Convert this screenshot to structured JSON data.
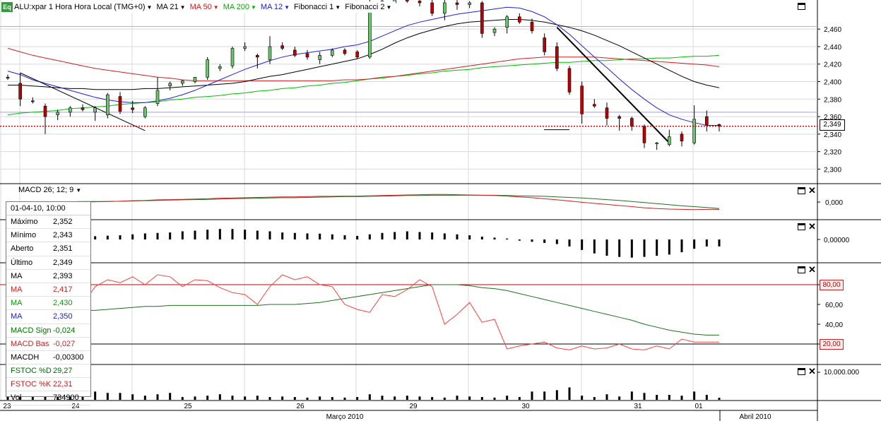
{
  "toolbar": {
    "logo": "Eq",
    "symbol": "ALU:xpar 1 Hora Hora Local (TMG+0)",
    "items": [
      {
        "label": "MA 21",
        "color": "#000000"
      },
      {
        "label": "MA 50",
        "color": "#d02020"
      },
      {
        "label": "MA 200",
        "color": "#00b000"
      },
      {
        "label": "MA 12",
        "color": "#2020d0"
      },
      {
        "label": "Fibonacci 1",
        "color": "#000000"
      },
      {
        "label": "Fibonacci 2",
        "color": "#000000"
      }
    ]
  },
  "macd_label": "MACD 26; 12; 9",
  "info_panel": {
    "header": "01-04-10, 10:00",
    "rows": [
      {
        "k": "Máximo",
        "v": "2,352",
        "color": "#000000"
      },
      {
        "k": "Mínimo",
        "v": "2,343",
        "color": "#000000"
      },
      {
        "k": "Aberto",
        "v": "2,351",
        "color": "#000000"
      },
      {
        "k": "Último",
        "v": "2,349",
        "color": "#000000"
      },
      {
        "k": "MA",
        "v": "2,393",
        "color": "#000000"
      },
      {
        "k": "MA",
        "v": "2,417",
        "color": "#d02020"
      },
      {
        "k": "MA",
        "v": "2,430",
        "color": "#00a000"
      },
      {
        "k": "MA",
        "v": "2,350",
        "color": "#2020d0"
      },
      {
        "k": "MACD Sign",
        "v": "-0,024",
        "color": "#007000"
      },
      {
        "k": "MACD Bas",
        "v": "-0,027",
        "color": "#d02020"
      },
      {
        "k": "MACDH",
        "v": "-0,00300",
        "color": "#000000"
      },
      {
        "k": "FSTOC %D",
        "v": "29,27",
        "color": "#007000"
      },
      {
        "k": "FSTOC %K",
        "v": "22,31",
        "color": "#d02020"
      },
      {
        "k": "Vol",
        "v": "734900",
        "color": "#000000"
      }
    ]
  },
  "colors": {
    "up_candle": "#6cc46c",
    "down_candle": "#c00000",
    "ma21": "#000000",
    "ma50": "#d02020",
    "ma200": "#00c000",
    "ma12": "#2020e0",
    "grid": "#d8d8e0",
    "last_price": "#c00000",
    "fib_line": "#ff80ff"
  },
  "chart_data": [
    {
      "panel": "price",
      "type": "candlestick",
      "y_ticks": [
        "2,460",
        "2,440",
        "2,420",
        "2,400",
        "2,380",
        "2,360",
        "2,340",
        "2,320",
        "2,300"
      ],
      "ylim": [
        2.285,
        2.49
      ],
      "last_price_label": "2,349",
      "last_price": 2.349,
      "fib_levels": [
        2.463,
        2.365
      ],
      "x_day_labels": [
        "23",
        "24",
        "25",
        "26",
        "29",
        "30",
        "31",
        "01"
      ],
      "month_labels": [
        "Março 2010",
        "Abril 2010"
      ],
      "candles": [
        {
          "o": 2.405,
          "h": 2.408,
          "l": 2.402,
          "c": 2.404
        },
        {
          "o": 2.398,
          "h": 2.41,
          "l": 2.372,
          "c": 2.38
        },
        {
          "o": 2.378,
          "h": 2.382,
          "l": 2.375,
          "c": 2.377
        },
        {
          "o": 2.372,
          "h": 2.375,
          "l": 2.34,
          "c": 2.36
        },
        {
          "o": 2.362,
          "h": 2.368,
          "l": 2.356,
          "c": 2.365
        },
        {
          "o": 2.365,
          "h": 2.372,
          "l": 2.36,
          "c": 2.37
        },
        {
          "o": 2.37,
          "h": 2.374,
          "l": 2.366,
          "c": 2.368
        },
        {
          "o": 2.365,
          "h": 2.372,
          "l": 2.355,
          "c": 2.37
        },
        {
          "o": 2.362,
          "h": 2.387,
          "l": 2.358,
          "c": 2.385
        },
        {
          "o": 2.383,
          "h": 2.388,
          "l": 2.363,
          "c": 2.366
        },
        {
          "o": 2.37,
          "h": 2.378,
          "l": 2.364,
          "c": 2.368
        },
        {
          "o": 2.36,
          "h": 2.372,
          "l": 2.358,
          "c": 2.37
        },
        {
          "o": 2.375,
          "h": 2.405,
          "l": 2.372,
          "c": 2.39
        },
        {
          "o": 2.395,
          "h": 2.4,
          "l": 2.39,
          "c": 2.398
        },
        {
          "o": 2.398,
          "h": 2.402,
          "l": 2.395,
          "c": 2.401
        },
        {
          "o": 2.4,
          "h": 2.405,
          "l": 2.398,
          "c": 2.405
        },
        {
          "o": 2.405,
          "h": 2.428,
          "l": 2.402,
          "c": 2.425
        },
        {
          "o": 2.415,
          "h": 2.42,
          "l": 2.412,
          "c": 2.417
        },
        {
          "o": 2.418,
          "h": 2.44,
          "l": 2.415,
          "c": 2.438
        },
        {
          "o": 2.438,
          "h": 2.445,
          "l": 2.435,
          "c": 2.44
        },
        {
          "o": 2.43,
          "h": 2.432,
          "l": 2.415,
          "c": 2.428
        },
        {
          "o": 2.425,
          "h": 2.452,
          "l": 2.42,
          "c": 2.44
        },
        {
          "o": 2.441,
          "h": 2.445,
          "l": 2.436,
          "c": 2.438
        },
        {
          "o": 2.436,
          "h": 2.44,
          "l": 2.428,
          "c": 2.43
        },
        {
          "o": 2.432,
          "h": 2.436,
          "l": 2.425,
          "c": 2.428
        },
        {
          "o": 2.425,
          "h": 2.434,
          "l": 2.42,
          "c": 2.43
        },
        {
          "o": 2.43,
          "h": 2.438,
          "l": 2.428,
          "c": 2.436
        },
        {
          "o": 2.436,
          "h": 2.438,
          "l": 2.43,
          "c": 2.432
        },
        {
          "o": 2.434,
          "h": 2.436,
          "l": 2.426,
          "c": 2.428
        },
        {
          "o": 2.428,
          "h": 2.495,
          "l": 2.426,
          "c": 2.49
        },
        {
          "o": 2.488,
          "h": 2.495,
          "l": 2.482,
          "c": 2.492
        },
        {
          "o": 2.49,
          "h": 2.495,
          "l": 2.486,
          "c": 2.494
        },
        {
          "o": 2.494,
          "h": 2.496,
          "l": 2.49,
          "c": 2.492
        },
        {
          "o": 2.492,
          "h": 2.495,
          "l": 2.486,
          "c": 2.49
        },
        {
          "o": 2.49,
          "h": 2.496,
          "l": 2.475,
          "c": 2.478
        },
        {
          "o": 2.478,
          "h": 2.495,
          "l": 2.47,
          "c": 2.49
        },
        {
          "o": 2.49,
          "h": 2.495,
          "l": 2.482,
          "c": 2.488
        },
        {
          "o": 2.488,
          "h": 2.492,
          "l": 2.484,
          "c": 2.49
        },
        {
          "o": 2.49,
          "h": 2.492,
          "l": 2.45,
          "c": 2.455
        },
        {
          "o": 2.456,
          "h": 2.462,
          "l": 2.452,
          "c": 2.46
        },
        {
          "o": 2.462,
          "h": 2.476,
          "l": 2.455,
          "c": 2.474
        },
        {
          "o": 2.474,
          "h": 2.478,
          "l": 2.466,
          "c": 2.468
        },
        {
          "o": 2.468,
          "h": 2.472,
          "l": 2.455,
          "c": 2.458
        },
        {
          "o": 2.45,
          "h": 2.455,
          "l": 2.43,
          "c": 2.434
        },
        {
          "o": 2.44,
          "h": 2.445,
          "l": 2.412,
          "c": 2.415
        },
        {
          "o": 2.415,
          "h": 2.418,
          "l": 2.385,
          "c": 2.388
        },
        {
          "o": 2.395,
          "h": 2.4,
          "l": 2.352,
          "c": 2.363
        },
        {
          "o": 2.374,
          "h": 2.38,
          "l": 2.37,
          "c": 2.372
        },
        {
          "o": 2.37,
          "h": 2.376,
          "l": 2.35,
          "c": 2.358
        },
        {
          "o": 2.36,
          "h": 2.362,
          "l": 2.344,
          "c": 2.358
        },
        {
          "o": 2.358,
          "h": 2.36,
          "l": 2.344,
          "c": 2.349
        },
        {
          "o": 2.349,
          "h": 2.351,
          "l": 2.324,
          "c": 2.33
        },
        {
          "o": 2.329,
          "h": 2.331,
          "l": 2.322,
          "c": 2.33
        },
        {
          "o": 2.328,
          "h": 2.345,
          "l": 2.326,
          "c": 2.337
        },
        {
          "o": 2.34,
          "h": 2.343,
          "l": 2.326,
          "c": 2.332
        },
        {
          "o": 2.33,
          "h": 2.373,
          "l": 2.328,
          "c": 2.357
        },
        {
          "o": 2.36,
          "h": 2.367,
          "l": 2.343,
          "c": 2.35
        },
        {
          "o": 2.351,
          "h": 2.352,
          "l": 2.343,
          "c": 2.349
        }
      ],
      "ma12": [
        2.412,
        2.408,
        2.402,
        2.398,
        2.394,
        2.39,
        2.386,
        2.382,
        2.379,
        2.377,
        2.376,
        2.376,
        2.378,
        2.381,
        2.385,
        2.39,
        2.396,
        2.402,
        2.408,
        2.414,
        2.419,
        2.424,
        2.428,
        2.431,
        2.433,
        2.435,
        2.437,
        2.44,
        2.442,
        2.446,
        2.452,
        2.458,
        2.464,
        2.468,
        2.471,
        2.474,
        2.477,
        2.479,
        2.481,
        2.483,
        2.485,
        2.484,
        2.48,
        2.474,
        2.465,
        2.454,
        2.441,
        2.428,
        2.416,
        2.403,
        2.391,
        2.38,
        2.37,
        2.362,
        2.357,
        2.353,
        2.35,
        2.35
      ],
      "ma21": [
        2.396,
        2.396,
        2.395,
        2.394,
        2.393,
        2.392,
        2.392,
        2.391,
        2.391,
        2.391,
        2.391,
        2.392,
        2.392,
        2.393,
        2.394,
        2.395,
        2.396,
        2.397,
        2.398,
        2.4,
        2.403,
        2.406,
        2.408,
        2.411,
        2.414,
        2.417,
        2.42,
        2.423,
        2.426,
        2.431,
        2.437,
        2.444,
        2.45,
        2.455,
        2.459,
        2.463,
        2.466,
        2.468,
        2.469,
        2.47,
        2.471,
        2.471,
        2.47,
        2.468,
        2.465,
        2.462,
        2.458,
        2.453,
        2.447,
        2.441,
        2.434,
        2.427,
        2.42,
        2.413,
        2.406,
        2.4,
        2.396,
        2.393
      ],
      "ma50": [
        2.438,
        2.434,
        2.43,
        2.427,
        2.424,
        2.421,
        2.418,
        2.415,
        2.413,
        2.411,
        2.409,
        2.407,
        2.405,
        2.404,
        2.402,
        2.401,
        2.401,
        2.401,
        2.401,
        2.401,
        2.401,
        2.401,
        2.401,
        2.401,
        2.401,
        2.401,
        2.401,
        2.402,
        2.402,
        2.403,
        2.405,
        2.406,
        2.408,
        2.41,
        2.412,
        2.414,
        2.416,
        2.418,
        2.42,
        2.422,
        2.424,
        2.426,
        2.427,
        2.428,
        2.428,
        2.428,
        2.428,
        2.428,
        2.427,
        2.426,
        2.425,
        2.424,
        2.423,
        2.422,
        2.421,
        2.42,
        2.419,
        2.417
      ],
      "ma200": [
        2.362,
        2.364,
        2.365,
        2.366,
        2.367,
        2.369,
        2.37,
        2.371,
        2.372,
        2.374,
        2.375,
        2.376,
        2.377,
        2.379,
        2.38,
        2.382,
        2.383,
        2.384,
        2.386,
        2.387,
        2.389,
        2.39,
        2.392,
        2.393,
        2.395,
        2.396,
        2.398,
        2.399,
        2.401,
        2.403,
        2.404,
        2.406,
        2.407,
        2.409,
        2.41,
        2.412,
        2.413,
        2.414,
        2.416,
        2.417,
        2.418,
        2.419,
        2.42,
        2.421,
        2.422,
        2.422,
        2.423,
        2.424,
        2.424,
        2.425,
        2.426,
        2.426,
        2.427,
        2.427,
        2.428,
        2.429,
        2.429,
        2.43
      ]
    },
    {
      "panel": "macd",
      "type": "line",
      "y_ticks": [
        "0,000"
      ],
      "ylim": [
        -0.06,
        0.06
      ],
      "signal": [
        0.0,
        0.0,
        0.0,
        0.001,
        0.001,
        0.001,
        0.002,
        0.002,
        0.002,
        0.003,
        0.004,
        0.005,
        0.006,
        0.007,
        0.008,
        0.009,
        0.01,
        0.011,
        0.012,
        0.013,
        0.014,
        0.015,
        0.016,
        0.016,
        0.017,
        0.018,
        0.019,
        0.02,
        0.02,
        0.021,
        0.022,
        0.023,
        0.024,
        0.024,
        0.025,
        0.025,
        0.025,
        0.025,
        0.025,
        0.025,
        0.024,
        0.023,
        0.022,
        0.021,
        0.019,
        0.017,
        0.015,
        0.012,
        0.009,
        0.006,
        0.002,
        -0.002,
        -0.006,
        -0.01,
        -0.014,
        -0.017,
        -0.02,
        -0.024
      ],
      "basis": [
        -0.004,
        -0.004,
        -0.003,
        -0.002,
        -0.002,
        -0.001,
        0.0,
        0.001,
        0.002,
        0.003,
        0.005,
        0.006,
        0.008,
        0.009,
        0.01,
        0.011,
        0.012,
        0.014,
        0.015,
        0.016,
        0.017,
        0.018,
        0.019,
        0.019,
        0.02,
        0.021,
        0.021,
        0.022,
        0.022,
        0.023,
        0.024,
        0.025,
        0.026,
        0.027,
        0.028,
        0.028,
        0.027,
        0.026,
        0.025,
        0.024,
        0.022,
        0.019,
        0.016,
        0.012,
        0.008,
        0.004,
        -0.001,
        -0.005,
        -0.009,
        -0.013,
        -0.017,
        -0.021,
        -0.024,
        -0.026,
        -0.027,
        -0.028,
        -0.027,
        -0.027
      ]
    },
    {
      "panel": "macd_histogram",
      "type": "bar",
      "y_ticks": [
        "0,00000"
      ],
      "values": [
        0.0005,
        0.0005,
        0.0005,
        0.0007,
        0.0008,
        0.001,
        0.0012,
        0.0014,
        0.0016,
        0.0018,
        0.0022,
        0.0026,
        0.0028,
        0.003,
        0.0035,
        0.0038,
        0.0042,
        0.0045,
        0.0045,
        0.0042,
        0.0038,
        0.0035,
        0.003,
        0.0028,
        0.0026,
        0.0025,
        0.0022,
        0.0018,
        0.0015,
        0.0022,
        0.0028,
        0.0032,
        0.0035,
        0.0032,
        0.003,
        0.0026,
        0.0022,
        0.0018,
        0.0012,
        0.0008,
        0.0004,
        -0.0005,
        -0.001,
        -0.0015,
        -0.002,
        -0.003,
        -0.0045,
        -0.006,
        -0.007,
        -0.0075,
        -0.0078,
        -0.0075,
        -0.007,
        -0.0065,
        -0.0055,
        -0.004,
        -0.003,
        -0.003
      ]
    },
    {
      "panel": "stochastic",
      "type": "line",
      "y_ticks": [
        "80,00",
        "60,00",
        "40,00",
        "20,00"
      ],
      "ylim": [
        0,
        100
      ],
      "d_line": [
        52,
        52,
        52,
        53,
        53,
        53,
        54,
        54,
        55,
        56,
        57,
        58,
        58,
        59,
        59,
        59,
        59,
        59,
        59,
        59,
        59,
        60,
        60,
        60,
        61,
        62,
        64,
        66,
        68,
        70,
        72,
        74,
        76,
        78,
        80,
        80,
        80,
        79,
        77,
        76,
        74,
        71,
        68,
        65,
        62,
        59,
        56,
        53,
        50,
        47,
        44,
        40,
        37,
        34,
        32,
        30,
        29,
        29
      ],
      "k_line": [
        50,
        45,
        35,
        33,
        35,
        40,
        60,
        78,
        85,
        82,
        88,
        80,
        90,
        88,
        78,
        85,
        84,
        77,
        72,
        70,
        60,
        78,
        90,
        85,
        88,
        80,
        78,
        60,
        55,
        52,
        70,
        68,
        75,
        85,
        78,
        40,
        50,
        62,
        42,
        45,
        15,
        18,
        20,
        22,
        16,
        14,
        18,
        15,
        16,
        20,
        15,
        14,
        18,
        15,
        25,
        22,
        22,
        22
      ],
      "overbought": 80,
      "oversold": 20
    },
    {
      "panel": "volume",
      "type": "bar",
      "y_ticks": [
        "10.000.000"
      ],
      "ylim": [
        0,
        10000000
      ],
      "values": [
        2500000,
        3000000,
        2000000,
        2500000,
        2500000,
        1500000,
        2000000,
        3000000,
        2500000,
        2500000,
        2000000,
        1500000,
        2000000,
        2500000,
        1000000,
        1200000,
        1500000,
        2000000,
        1500000,
        1200000,
        1500000,
        1000000,
        1200000,
        1000000,
        800000,
        1200000,
        1000000,
        800000,
        1000000,
        2000000,
        1500000,
        1200000,
        1500000,
        1200000,
        1000000,
        800000,
        1500000,
        1200000,
        1000000,
        800000,
        1500000,
        1000000,
        3000000,
        3000000,
        3500000,
        4500000,
        1500000,
        1000000,
        2000000,
        1200000,
        3000000,
        2500000,
        1800000,
        1800000,
        1500000,
        3000000,
        1800000,
        734900
      ]
    }
  ]
}
